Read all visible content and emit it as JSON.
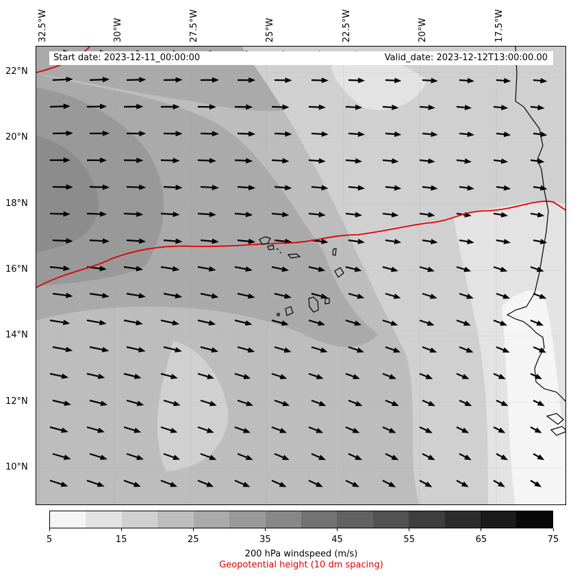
{
  "map": {
    "start_date_text": "Start date: 2023-12-11_00:00:00",
    "valid_date_text": "Valid_date: 2023-12-12T13:00:00.00",
    "longitude_labels": [
      "32.5°W",
      "30°W",
      "27.5°W",
      "25°W",
      "22.5°W",
      "20°W",
      "17.5°W"
    ],
    "latitude_labels": [
      "22°N",
      "20°N",
      "18°N",
      "16°N",
      "14°N",
      "12°N",
      "10°N"
    ],
    "geopotential_line_color": "#e00000",
    "region": "Eastern tropical Atlantic / Cape Verde / West African coast",
    "wind_direction": "westerly to west-north-westerly"
  },
  "colorbar": {
    "ticks": [
      "5",
      "15",
      "25",
      "35",
      "45",
      "55",
      "65",
      "75"
    ],
    "colors": [
      "#f5f5f5",
      "#e3e3e3",
      "#d0d0d0",
      "#bdbdbd",
      "#aaaaaa",
      "#999999",
      "#878787",
      "#737373",
      "#626262",
      "#515151",
      "#3e3e3e",
      "#2c2c2c",
      "#1a1a1a",
      "#080808"
    ],
    "label": "200 hPa windspeed (m/s)",
    "label2": "Geopotential height (10 dm spacing)"
  }
}
